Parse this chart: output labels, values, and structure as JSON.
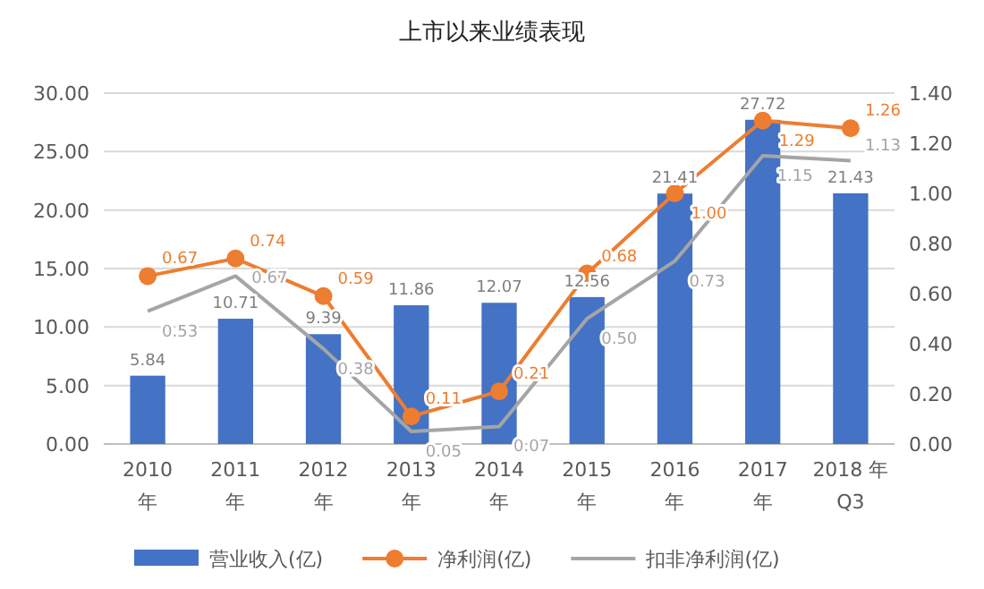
{
  "chart_data": {
    "type": "bar",
    "title": "上市以来业绩表现",
    "categories": [
      "2010\n年",
      "2011\n年",
      "2012\n年",
      "2013\n年",
      "2014\n年",
      "2015\n年",
      "2016\n年",
      "2017\n年",
      "2018 年\nQ3"
    ],
    "series": [
      {
        "name": "营业收入(亿)",
        "color": "#4472c4",
        "values": [
          5.84,
          10.71,
          9.39,
          11.86,
          12.07,
          12.56,
          21.41,
          27.72,
          21.43
        ],
        "value_labels": [
          "5.84",
          "10.71",
          "9.39",
          "11.86",
          "12.07",
          "12.56",
          "21.41",
          "27.72",
          "21.43"
        ]
      },
      {
        "name": "净利润(亿)",
        "type": "line",
        "axis": "y2",
        "marker": "circle",
        "color": "#ed7d31",
        "values": [
          0.67,
          0.74,
          0.59,
          0.11,
          0.21,
          0.68,
          1.0,
          1.29,
          1.26
        ],
        "value_labels": [
          "0.67",
          "0.74",
          "0.59",
          "0.11",
          "0.21",
          "0.68",
          "1.00",
          "1.29",
          "1.26"
        ]
      },
      {
        "name": "扣非净利润(亿)",
        "type": "line",
        "axis": "y2",
        "marker": "none",
        "color": "#a5a5a5",
        "values": [
          0.53,
          0.67,
          0.38,
          0.05,
          0.07,
          0.5,
          0.73,
          1.15,
          1.13
        ],
        "value_labels": [
          "0.53",
          "0.67",
          "0.38",
          "0.05",
          "0.07",
          "0.50",
          "0.73",
          "1.15",
          "1.13"
        ]
      }
    ],
    "ylim": [
      0,
      30
    ],
    "yticks": [
      {
        "value": 0,
        "label": "0.00"
      },
      {
        "value": 5,
        "label": "5.00"
      },
      {
        "value": 10,
        "label": "10.00"
      },
      {
        "value": 15,
        "label": "15.00"
      },
      {
        "value": 20,
        "label": "20.00"
      },
      {
        "value": 25,
        "label": "25.00"
      },
      {
        "value": 30,
        "label": "30.00"
      }
    ],
    "y2lim": [
      0,
      1.4
    ],
    "y2ticks": [
      {
        "value": 0,
        "label": "0.00"
      },
      {
        "value": 0.2,
        "label": "0.20"
      },
      {
        "value": 0.4,
        "label": "0.40"
      },
      {
        "value": 0.6,
        "label": "0.60"
      },
      {
        "value": 0.8,
        "label": "0.80"
      },
      {
        "value": 1,
        "label": "1.00"
      },
      {
        "value": 1.2,
        "label": "1.20"
      },
      {
        "value": 1.4,
        "label": "1.40"
      }
    ],
    "grid": "y",
    "legend": "bottom"
  }
}
